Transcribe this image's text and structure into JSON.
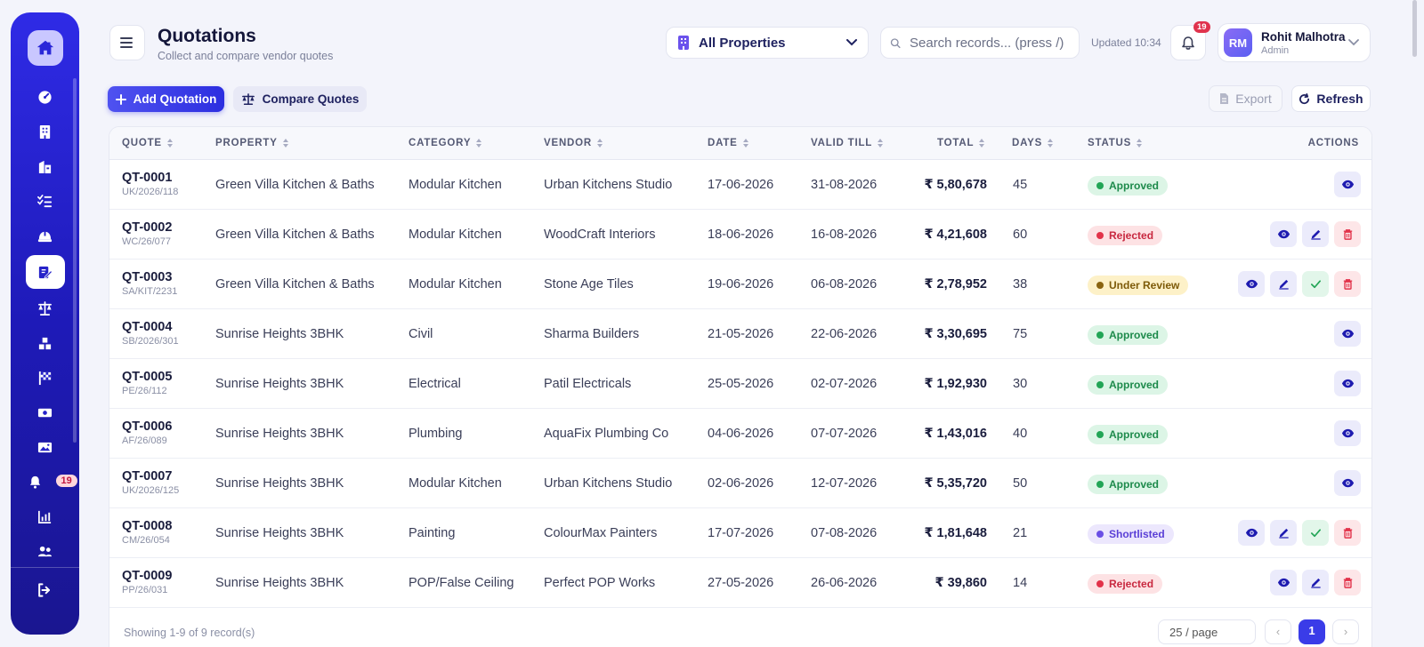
{
  "header": {
    "title": "Quotations",
    "subtitle": "Collect and compare vendor quotes",
    "property_filter": "All Properties",
    "search_placeholder": "Search records... (press /)",
    "updated": "Updated 10:34",
    "notification_count": "19",
    "user": {
      "initials": "RM",
      "name": "Rohit Malhotra",
      "role": "Admin"
    }
  },
  "sidebar": {
    "items": [
      {
        "icon": "dashboard-icon"
      },
      {
        "icon": "building-icon"
      },
      {
        "icon": "property-icon"
      },
      {
        "icon": "checklist-icon"
      },
      {
        "icon": "helmet-icon"
      },
      {
        "icon": "quotation-icon",
        "active": true
      },
      {
        "icon": "scale-icon"
      },
      {
        "icon": "boxes-icon"
      },
      {
        "icon": "milestone-flag-icon"
      },
      {
        "icon": "money-icon"
      },
      {
        "icon": "gallery-icon"
      },
      {
        "icon": "bell-icon",
        "badge": "19"
      },
      {
        "icon": "report-chart-icon"
      },
      {
        "icon": "users-icon"
      }
    ],
    "logout_icon": "logout-icon"
  },
  "toolbar": {
    "add_label": "Add Quotation",
    "compare_label": "Compare Quotes",
    "export_label": "Export",
    "refresh_label": "Refresh"
  },
  "table": {
    "columns": [
      "QUOTE",
      "PROPERTY",
      "CATEGORY",
      "VENDOR",
      "DATE",
      "VALID TILL",
      "TOTAL",
      "DAYS",
      "STATUS",
      "ACTIONS"
    ],
    "rows": [
      {
        "id": "QT-0001",
        "ref": "UK/2026/118",
        "property": "Green Villa Kitchen & Baths",
        "category": "Modular Kitchen",
        "vendor": "Urban Kitchens Studio",
        "date": "17-06-2026",
        "valid": "31-08-2026",
        "total": "₹ 5,80,678",
        "days": "45",
        "status": "Approved",
        "actions": [
          "view"
        ]
      },
      {
        "id": "QT-0002",
        "ref": "WC/26/077",
        "property": "Green Villa Kitchen & Baths",
        "category": "Modular Kitchen",
        "vendor": "WoodCraft Interiors",
        "date": "18-06-2026",
        "valid": "16-08-2026",
        "total": "₹ 4,21,608",
        "days": "60",
        "status": "Rejected",
        "actions": [
          "view",
          "edit",
          "delete"
        ]
      },
      {
        "id": "QT-0003",
        "ref": "SA/KIT/2231",
        "property": "Green Villa Kitchen & Baths",
        "category": "Modular Kitchen",
        "vendor": "Stone Age Tiles",
        "date": "19-06-2026",
        "valid": "06-08-2026",
        "total": "₹ 2,78,952",
        "days": "38",
        "status": "Under Review",
        "actions": [
          "view",
          "edit",
          "approve",
          "delete"
        ]
      },
      {
        "id": "QT-0004",
        "ref": "SB/2026/301",
        "property": "Sunrise Heights 3BHK",
        "category": "Civil",
        "vendor": "Sharma Builders",
        "date": "21-05-2026",
        "valid": "22-06-2026",
        "total": "₹ 3,30,695",
        "days": "75",
        "status": "Approved",
        "actions": [
          "view"
        ]
      },
      {
        "id": "QT-0005",
        "ref": "PE/26/112",
        "property": "Sunrise Heights 3BHK",
        "category": "Electrical",
        "vendor": "Patil Electricals",
        "date": "25-05-2026",
        "valid": "02-07-2026",
        "total": "₹ 1,92,930",
        "days": "30",
        "status": "Approved",
        "actions": [
          "view"
        ]
      },
      {
        "id": "QT-0006",
        "ref": "AF/26/089",
        "property": "Sunrise Heights 3BHK",
        "category": "Plumbing",
        "vendor": "AquaFix Plumbing Co",
        "date": "04-06-2026",
        "valid": "07-07-2026",
        "total": "₹ 1,43,016",
        "days": "40",
        "status": "Approved",
        "actions": [
          "view"
        ]
      },
      {
        "id": "QT-0007",
        "ref": "UK/2026/125",
        "property": "Sunrise Heights 3BHK",
        "category": "Modular Kitchen",
        "vendor": "Urban Kitchens Studio",
        "date": "02-06-2026",
        "valid": "12-07-2026",
        "total": "₹ 5,35,720",
        "days": "50",
        "status": "Approved",
        "actions": [
          "view"
        ]
      },
      {
        "id": "QT-0008",
        "ref": "CM/26/054",
        "property": "Sunrise Heights 3BHK",
        "category": "Painting",
        "vendor": "ColourMax Painters",
        "date": "17-07-2026",
        "valid": "07-08-2026",
        "total": "₹ 1,81,648",
        "days": "21",
        "status": "Shortlisted",
        "actions": [
          "view",
          "edit",
          "approve",
          "delete"
        ]
      },
      {
        "id": "QT-0009",
        "ref": "PP/26/031",
        "property": "Sunrise Heights 3BHK",
        "category": "POP/False Ceiling",
        "vendor": "Perfect POP Works",
        "date": "27-05-2026",
        "valid": "26-06-2026",
        "total": "₹ 39,860",
        "days": "14",
        "status": "Rejected",
        "actions": [
          "view",
          "edit",
          "delete"
        ]
      }
    ]
  },
  "footer": {
    "showing": "Showing 1-9 of 9 record(s)",
    "page_size": "25 / page",
    "prev": "‹",
    "current_page": "1",
    "next": "›"
  },
  "colors": {
    "accent": "#3a3ce8",
    "sidebar": "#2320c8",
    "approved": "#22a556",
    "rejected": "#e2334a",
    "review": "#8a6410",
    "shortlisted": "#6a4fe5"
  }
}
